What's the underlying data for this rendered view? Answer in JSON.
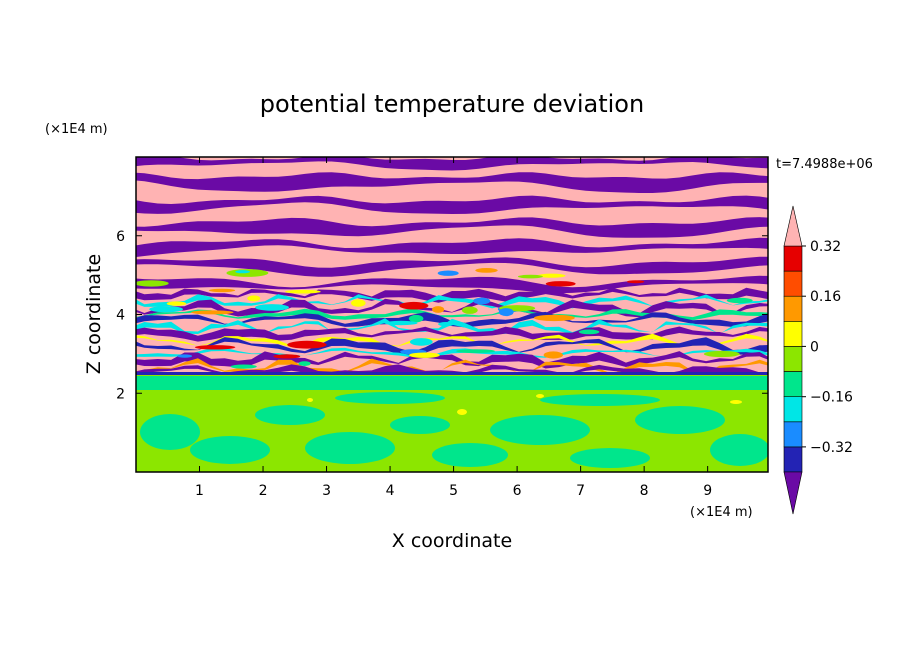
{
  "chart_data": {
    "type": "heatmap",
    "title": "potential temperature deviation",
    "xlabel": "X coordinate",
    "ylabel": "Z coordinate",
    "x_unit": "(×1E4 m)",
    "y_unit": "(×1E4 m)",
    "time_label": "t=7.4988e+06",
    "xlim": [
      0,
      9.95
    ],
    "ylim": [
      0,
      8
    ],
    "x_ticks": [
      "1",
      "2",
      "3",
      "4",
      "5",
      "6",
      "7",
      "8",
      "9"
    ],
    "y_ticks": [
      "2",
      "4",
      "6"
    ],
    "colorbar": {
      "tick_labels": [
        "0.32",
        "0.16",
        "0",
        "−0.16",
        "−0.32"
      ],
      "levels": [
        -0.4,
        -0.32,
        -0.24,
        -0.16,
        -0.08,
        0,
        0.08,
        0.16,
        0.24,
        0.32,
        0.4
      ],
      "colors": [
        "#6a0aa5",
        "#2323b4",
        "#1a8cff",
        "#00e6e6",
        "#00e68c",
        "#8ce600",
        "#ffff00",
        "#ff9900",
        "#ff4d00",
        "#e60000",
        "#ffb3b3"
      ],
      "under_color": "#6a0aa5",
      "over_color": "#ffb3b3"
    },
    "regions": {
      "lower_layer": {
        "z_range": [
          0,
          2.3
        ],
        "dominant_colors": [
          "#8ce600",
          "#00e68c"
        ]
      },
      "upper_layer": {
        "z_range": [
          2.3,
          8
        ],
        "dominant_colors": [
          "#ffb3b3",
          "#6a0aa5"
        ]
      }
    }
  }
}
